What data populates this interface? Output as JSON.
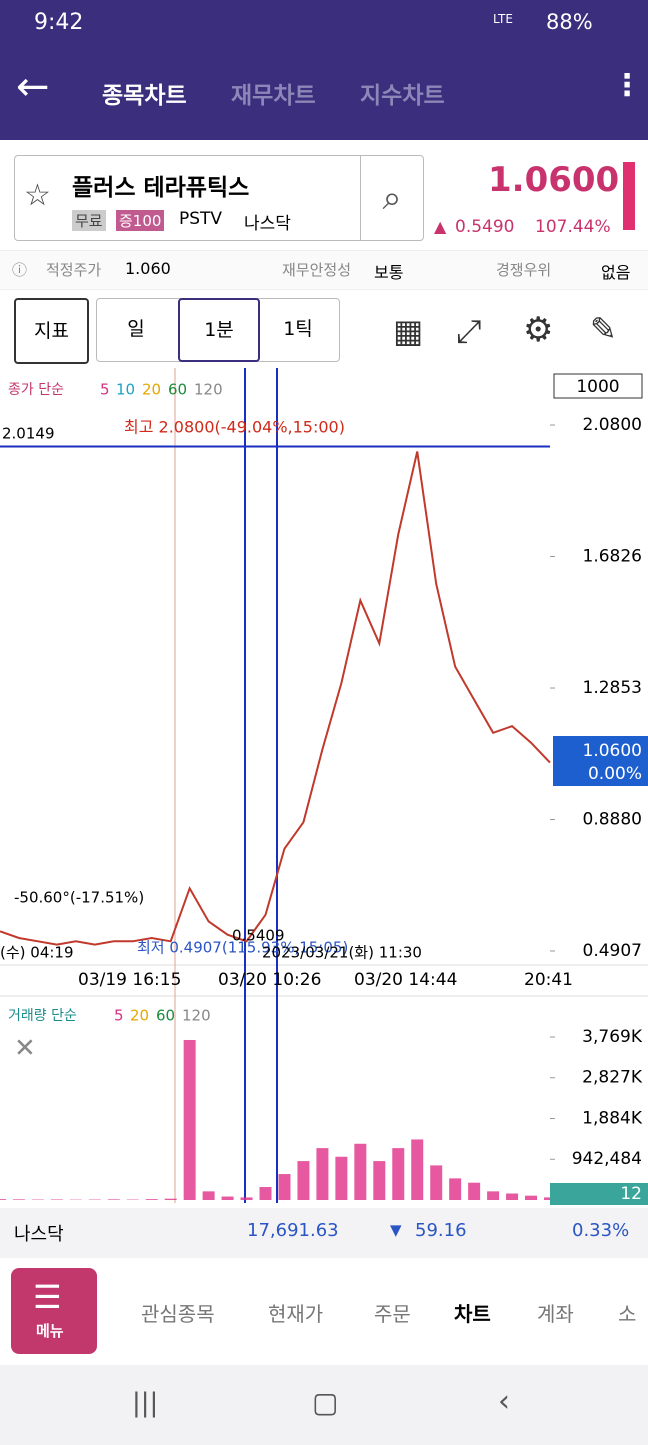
{
  "status_bar": {
    "time": "9:42",
    "network": "LTE",
    "battery": "88%"
  },
  "header": {
    "tabs": [
      "종목차트",
      "재무차트",
      "지수차트"
    ]
  },
  "stock": {
    "name": "플러스 테라퓨틱스",
    "badges": [
      "무료",
      "증100"
    ],
    "ticker": "PSTV",
    "market": "나스닥",
    "price": "1.0600",
    "change": "0.5490",
    "change_pct": "107.44%"
  },
  "info": [
    {
      "label": "적정주가",
      "value": "1.060"
    },
    {
      "label": "재무안정성",
      "value": "보통"
    },
    {
      "label": "경쟁우위",
      "value": "없음"
    }
  ],
  "toolbar": {
    "indicator": "지표",
    "periods": [
      "일",
      "1분",
      "1틱"
    ]
  },
  "price_chart": {
    "type": "line",
    "legend": "종가 단순",
    "ma": [
      {
        "name": "5",
        "color": "#d63384"
      },
      {
        "name": "10",
        "color": "#1aa3c8"
      },
      {
        "name": "20",
        "color": "#e6a700"
      },
      {
        "name": "60",
        "color": "#1a8c3a"
      },
      {
        "name": "120",
        "color": "#888888"
      }
    ],
    "scale": "1000",
    "ylim": [
      0.4907,
      2.08
    ],
    "yticks": [
      {
        "value": 2.08,
        "label": "2.0800"
      },
      1.6826,
      1.2853,
      {
        "value": 0.888,
        "label": "0.8880"
      },
      0.4907
    ],
    "high_note": "최고 2.0800(-49.04%,15:00)",
    "low_note": "최저 0.4907(115.93%,15:05)",
    "crosshair_price": "2.0149",
    "crosshair_low": "0.5409",
    "crosshair_change": "-50.60°(-17.51%)",
    "crosshair_left": "(수) 04:19",
    "crosshair_date": "2023/03/21(화) 11:30",
    "current": {
      "price": "1.0600",
      "change": "0.00%"
    },
    "x_labels": [
      "03/19 16:15",
      "03/20 10:26",
      "03/20 14:44",
      "20:41"
    ],
    "color": "#c0392b",
    "values": [
      0.55,
      0.53,
      0.52,
      0.51,
      0.52,
      0.51,
      0.52,
      0.52,
      0.53,
      0.52,
      0.68,
      0.58,
      0.54,
      0.52,
      0.6,
      0.8,
      0.88,
      1.1,
      1.3,
      1.55,
      1.42,
      1.75,
      2.0,
      1.6,
      1.35,
      1.25,
      1.15,
      1.17,
      1.12,
      1.06
    ]
  },
  "volume_chart": {
    "type": "bar",
    "legend": "거래량 단순",
    "ma": [
      {
        "name": "5",
        "color": "#d63384"
      },
      {
        "name": "20",
        "color": "#e6a700"
      },
      {
        "name": "60",
        "color": "#1a8c3a"
      },
      {
        "name": "120",
        "color": "#888888"
      }
    ],
    "ylim": [
      0,
      3769000
    ],
    "yticks": [
      {
        "value": 942484,
        "label": "942,484"
      },
      {
        "value": 1884000,
        "label": "1,884K"
      },
      {
        "value": 2827000,
        "label": "2,827K"
      },
      {
        "value": 3769000,
        "label": "3,769K"
      }
    ],
    "current": "12",
    "color": "#e0308a",
    "values": [
      20000,
      15000,
      10000,
      12000,
      8000,
      10000,
      15000,
      10000,
      20000,
      30000,
      3700000,
      200000,
      80000,
      60000,
      300000,
      600000,
      900000,
      1200000,
      1000000,
      1300000,
      900000,
      1200000,
      1400000,
      800000,
      500000,
      400000,
      200000,
      150000,
      100000,
      60000
    ]
  },
  "index_bar": {
    "name": "나스닥",
    "value": "17,691.63",
    "change": "59.16",
    "change_pct": "0.33%"
  },
  "nav": {
    "menu": "메뉴",
    "tabs": [
      "관심종목",
      "현재가",
      "주문",
      "차트",
      "계좌",
      "소"
    ]
  }
}
